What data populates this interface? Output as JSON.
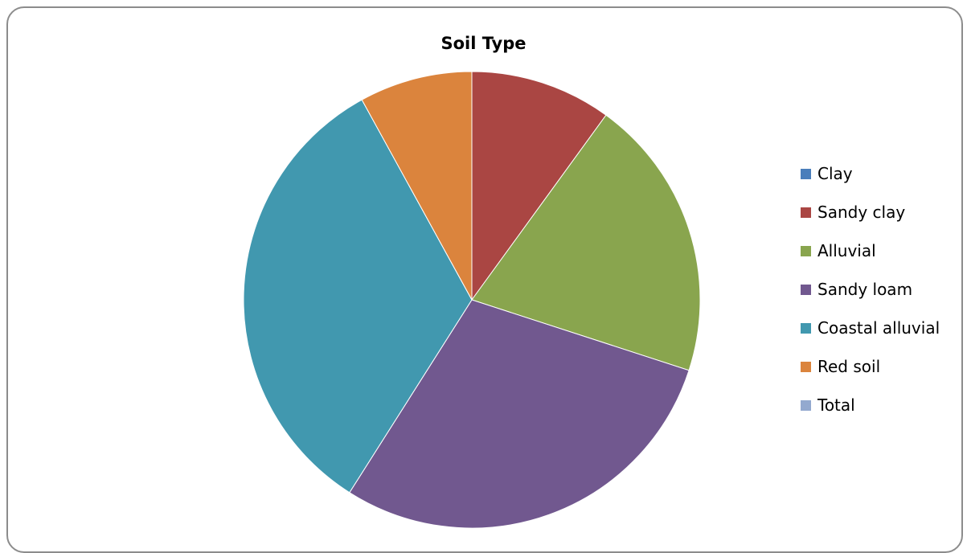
{
  "chart_data": {
    "type": "pie",
    "title": "Soil Type",
    "legend_position": "right",
    "slices": [
      {
        "label": "Clay",
        "value": 0,
        "color": "#4a7ebb"
      },
      {
        "label": "Sandy clay",
        "value": 10,
        "color": "#aa4643"
      },
      {
        "label": "Alluvial",
        "value": 20,
        "color": "#89a54e"
      },
      {
        "label": "Sandy loam",
        "value": 29,
        "color": "#71588f"
      },
      {
        "label": "Coastal alluvial",
        "value": 33,
        "color": "#4198af"
      },
      {
        "label": "Red soil",
        "value": 8,
        "color": "#db843d"
      },
      {
        "label": "Total",
        "value": 0,
        "color": "#93a9cf"
      }
    ]
  }
}
